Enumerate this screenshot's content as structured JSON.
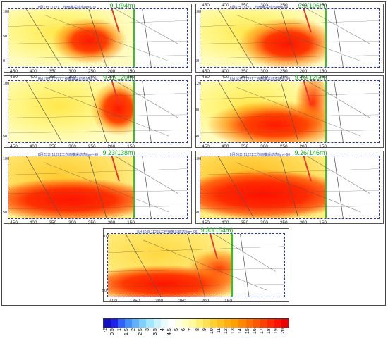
{
  "panels": [
    {
      "label": "9.1(94m)",
      "title": "8月1日 11221工作面推采动态0m=-70",
      "ticks_top": [],
      "ticks_bot": [
        "450",
        "400",
        "350",
        "300",
        "250",
        "200",
        "150"
      ],
      "yticks": [
        "100",
        "50",
        "0"
      ],
      "heat": "a"
    },
    {
      "label": "9.6(106m)",
      "title": "8月6日 11221工作面推采动态0m=-94",
      "ticks_top": [
        "450",
        "400",
        "350",
        "300",
        "250",
        "200",
        "150"
      ],
      "ticks_bot": [
        "450",
        "400",
        "350",
        "300",
        "250",
        "200",
        "150"
      ],
      "yticks": [
        "100",
        "50"
      ],
      "heat": "b"
    },
    {
      "label": "9.11(120m)",
      "title": "8月11日 11221工作面推采动态0m=-94",
      "ticks_top": [
        "450",
        "400",
        "350",
        "300",
        "250",
        "200",
        "150"
      ],
      "ticks_bot": [
        "450",
        "400",
        "350",
        "300",
        "250",
        "200",
        "150"
      ],
      "yticks": [
        "100",
        "50"
      ],
      "heat": "c"
    },
    {
      "label": "9.16(126m)",
      "title": "8月16日 11221工作面推采动态0m=-99",
      "ticks_top": [
        "450",
        "400",
        "350",
        "300",
        "250",
        "200",
        "150"
      ],
      "ticks_bot": [
        "450",
        "400",
        "350",
        "300",
        "250",
        "200",
        "150"
      ],
      "yticks": [
        "120",
        "80",
        "40"
      ],
      "heat": "d"
    },
    {
      "label": "9.23(138m)",
      "title": "8月23日 11221工作面推采动态0m=-98",
      "ticks_top": [],
      "ticks_bot": [
        "450",
        "400",
        "350",
        "300",
        "250",
        "200",
        "150"
      ],
      "yticks": [
        "100",
        "50"
      ],
      "heat": "e"
    },
    {
      "label": "9.26(146m)",
      "title": "8月26日 11221工作面推采动态0m=-96",
      "ticks_top": [],
      "ticks_bot": [
        "450",
        "400",
        "350",
        "300",
        "250",
        "200",
        "150"
      ],
      "yticks": [
        "100",
        "50"
      ],
      "heat": "e"
    },
    {
      "label": "9.30(154m)",
      "title": "8月30日 11221工作面推采动态0m=-96",
      "ticks_top": [],
      "ticks_bot": [
        "400",
        "350",
        "300",
        "250",
        "200",
        "150"
      ],
      "yticks": [
        "100",
        "50"
      ],
      "heat": "f"
    }
  ],
  "legend": {
    "labels": [
      "-2",
      "0.5",
      "1",
      "1.5",
      "2",
      "2.5",
      "3",
      "3.5",
      "4",
      "4.5",
      "5",
      "6",
      "7",
      "8",
      "9",
      "10",
      "11",
      "12",
      "13",
      "14",
      "15",
      "16",
      "17",
      "18",
      "19",
      "20"
    ],
    "colors": [
      "#1010c0",
      "#2020ee",
      "#3060ff",
      "#4090ff",
      "#60b0ff",
      "#80d0ff",
      "#a0e8ff",
      "#c8f4ff",
      "#e8fcff",
      "#ffffff",
      "#ffffe0",
      "#ffffc0",
      "#fffaa0",
      "#fff070",
      "#ffe050",
      "#ffd030",
      "#ffc020",
      "#ffb010",
      "#ffa000",
      "#ff8800",
      "#ff7000",
      "#ff5800",
      "#ff4000",
      "#ff2800",
      "#ff1000",
      "#ee0000"
    ]
  }
}
